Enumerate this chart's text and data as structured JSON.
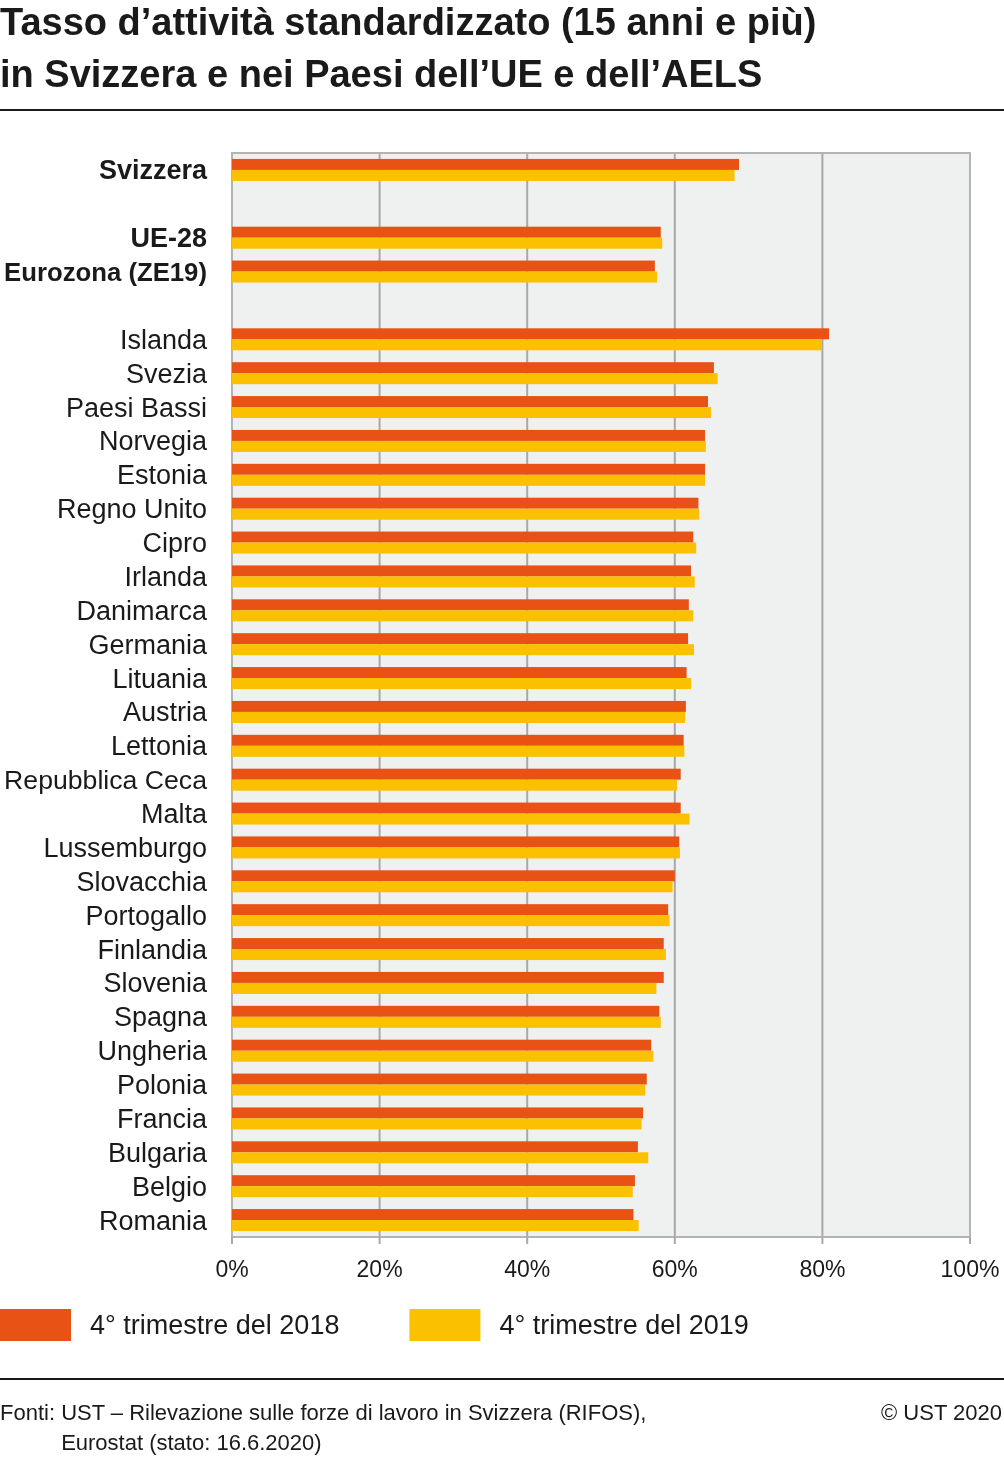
{
  "chart_data": {
    "type": "bar",
    "orientation": "horizontal",
    "title": "Tasso d’attività standardizzato (15 anni e più) in Svizzera e nei Paesi dell’UE e dell’AELS",
    "categories": [
      "Svizzera",
      null,
      "UE-28",
      "Eurozona (ZE19)",
      null,
      "Islanda",
      "Svezia",
      "Paesi Bassi",
      "Norvegia",
      "Estonia",
      "Regno Unito",
      "Cipro",
      "Irlanda",
      "Danimarca",
      "Germania",
      "Lituania",
      "Austria",
      "Lettonia",
      "Repubblica Ceca",
      "Malta",
      "Lussemburgo",
      "Slovacchia",
      "Portogallo",
      "Finlandia",
      "Slovenia",
      "Spagna",
      "Ungheria",
      "Polonia",
      "Francia",
      "Bulgaria",
      "Belgio",
      "Romania"
    ],
    "series": [
      {
        "name": "4° trimestre del 2018",
        "color": "#e85215",
        "values": [
          68.7,
          null,
          58.1,
          57.3,
          null,
          80.9,
          65.3,
          64.5,
          64.1,
          64.1,
          63.2,
          62.5,
          62.2,
          61.9,
          61.8,
          61.6,
          61.5,
          61.2,
          60.8,
          60.8,
          60.6,
          60.0,
          59.1,
          58.5,
          58.5,
          57.9,
          56.8,
          56.2,
          55.7,
          55.0,
          54.6,
          54.4
        ]
      },
      {
        "name": "4° trimestre del 2019",
        "color": "#fbc000",
        "values": [
          68.1,
          null,
          58.3,
          57.6,
          null,
          79.9,
          65.8,
          64.9,
          64.2,
          64.1,
          63.3,
          62.9,
          62.7,
          62.5,
          62.6,
          62.2,
          61.4,
          61.3,
          60.3,
          62.0,
          60.7,
          59.7,
          59.3,
          58.8,
          57.5,
          58.1,
          57.1,
          56.0,
          55.5,
          56.4,
          54.3,
          55.1
        ]
      }
    ],
    "xlim": [
      0,
      100
    ],
    "xticks": [
      {
        "value": 0,
        "label": "0%"
      },
      {
        "value": 20,
        "label": "20%"
      },
      {
        "value": 40,
        "label": "40%"
      },
      {
        "value": 60,
        "label": "60%"
      },
      {
        "value": 80,
        "label": "80%"
      },
      {
        "value": 100,
        "label": "100%"
      }
    ],
    "grid": "x",
    "legend": "bottom",
    "annotations": [
      "Fonti: UST – Rilevazione sulle forze di lavoro in Svizzera (RIFOS), Eurostat (stato: 16.6.2020)",
      "© UST 2020"
    ]
  }
}
